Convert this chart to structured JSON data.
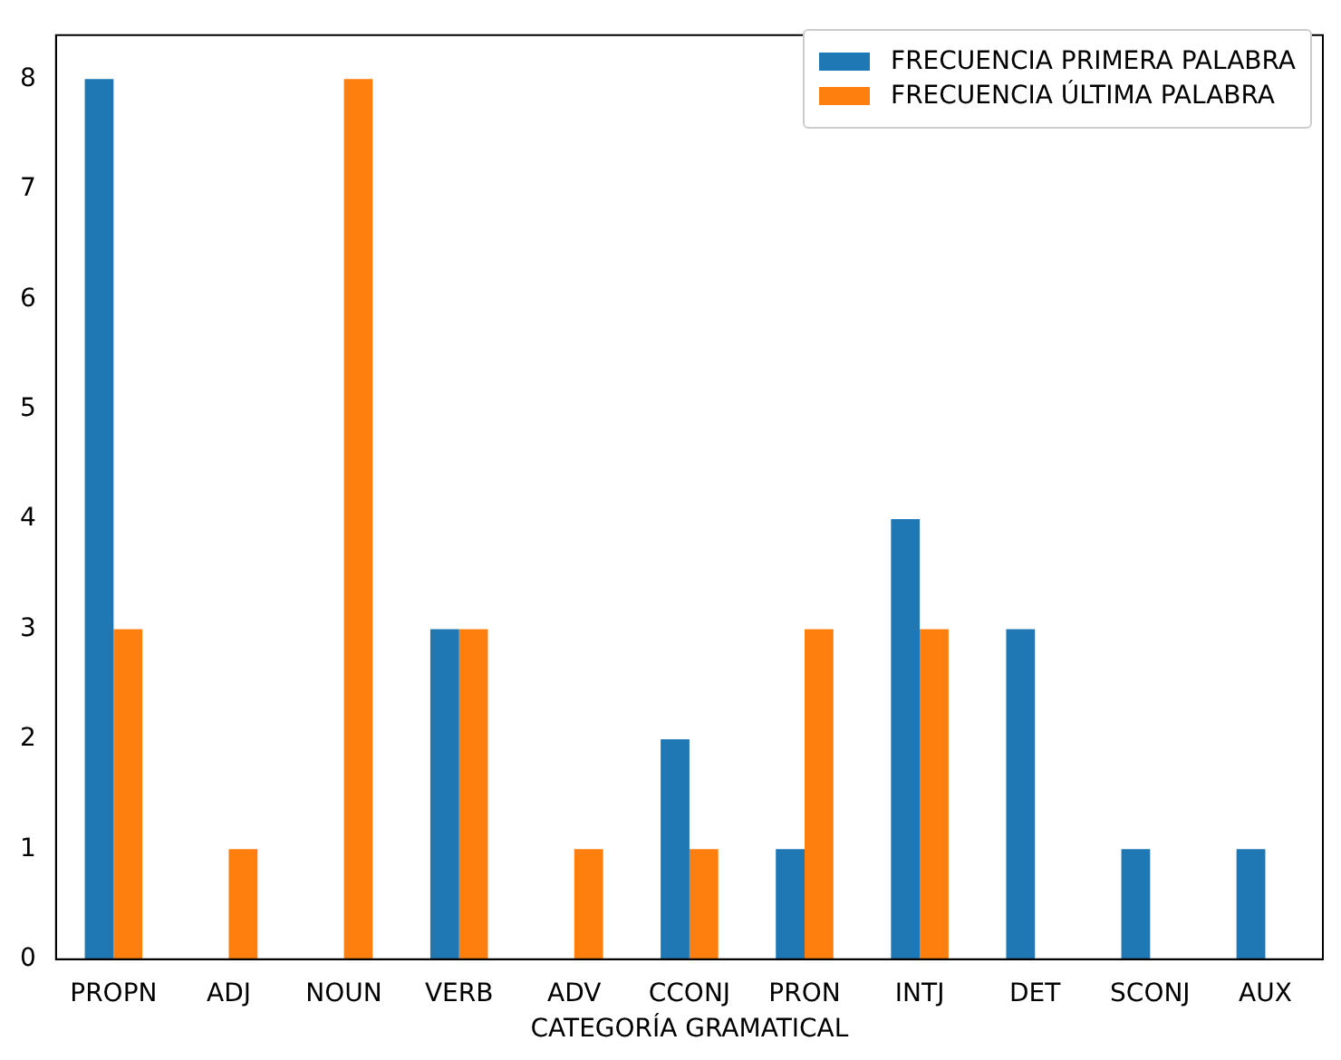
{
  "chart_data": {
    "type": "bar",
    "xlabel": "CATEGORÍA GRAMATICAL",
    "categories": [
      "PROPN",
      "ADJ",
      "NOUN",
      "VERB",
      "ADV",
      "CCONJ",
      "PRON",
      "INTJ",
      "DET",
      "SCONJ",
      "AUX"
    ],
    "series": [
      {
        "name": "FRECUENCIA PRIMERA PALABRA",
        "color": "#1f77b4",
        "values": [
          8,
          0,
          0,
          3,
          0,
          2,
          1,
          4,
          3,
          1,
          1
        ]
      },
      {
        "name": "FRECUENCIA ÚLTIMA PALABRA",
        "color": "#ff7f0e",
        "values": [
          3,
          1,
          8,
          3,
          1,
          1,
          3,
          3,
          0,
          0,
          0
        ]
      }
    ],
    "ylim": [
      0,
      8.4
    ],
    "yticks": [
      0,
      1,
      2,
      3,
      4,
      5,
      6,
      7,
      8
    ],
    "grid": false,
    "legend": "top right"
  }
}
